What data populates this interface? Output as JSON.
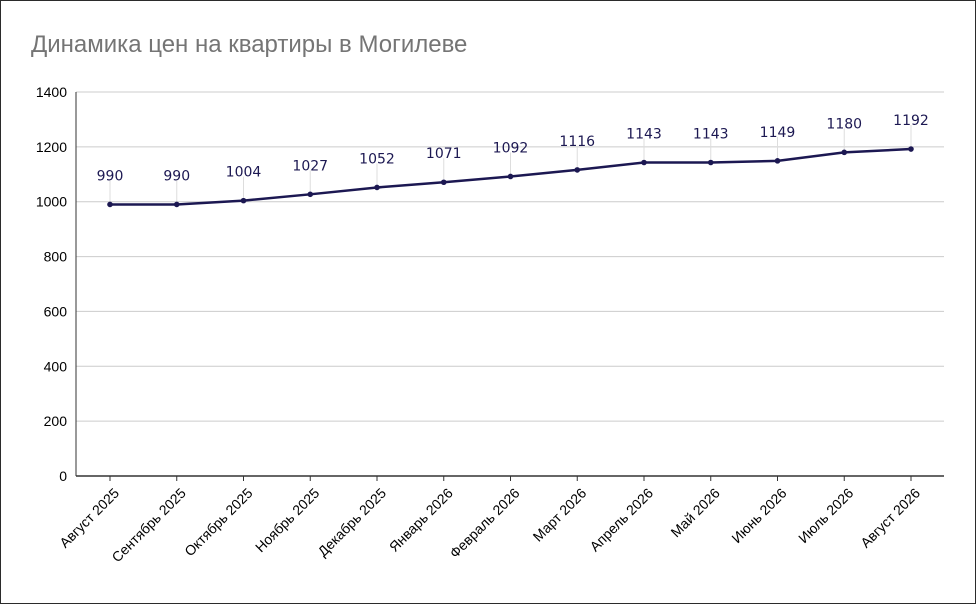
{
  "chart_data": {
    "type": "line",
    "title": "Динамика цен на квартиры в Могилеве",
    "categories": [
      "Август 2025",
      "Сентябрь 2025",
      "Октябрь 2025",
      "Ноябрь 2025",
      "Декабрь 2025",
      "Январь 2026",
      "Февраль 2026",
      "Март 2026",
      "Апрель 2026",
      "Май 2026",
      "Июнь 2026",
      "Июль 2026",
      "Август 2026"
    ],
    "series": [
      {
        "values": [
          990,
          990,
          1004,
          1027,
          1052,
          1071,
          1092,
          1116,
          1143,
          1143,
          1149,
          1180,
          1192
        ]
      }
    ],
    "ylim": [
      0,
      1400
    ],
    "yticks": [
      0,
      200,
      400,
      600,
      800,
      1000,
      1200,
      1400
    ],
    "grid": true,
    "data_labels": true,
    "line_color": "#1c1852",
    "grid_color": "#cccccc"
  }
}
